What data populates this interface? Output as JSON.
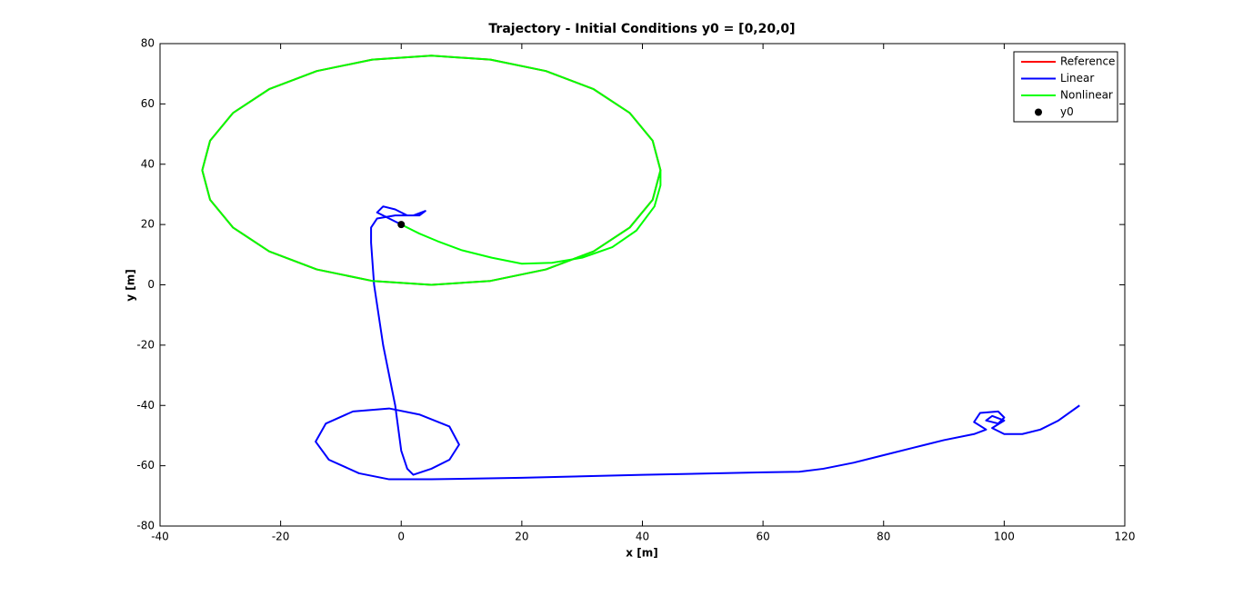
{
  "chart_data": {
    "type": "line",
    "title": "Trajectory - Initial Conditions y0 = [0,20,0]",
    "x_label": "x [m]",
    "y_label": "y [m]",
    "xlim": [
      -40,
      120
    ],
    "xticks": [
      -40,
      -20,
      0,
      20,
      40,
      60,
      80,
      100,
      120
    ],
    "ylim": [
      -80,
      80
    ],
    "yticks": [
      -80,
      -60,
      -40,
      -20,
      0,
      20,
      40,
      60,
      80
    ],
    "legend": "top-right",
    "series": [
      {
        "name": "Reference",
        "color": "#ff0000",
        "style": "line",
        "x": [
          5,
          14.8,
          24,
          31.9,
          37.9,
          41.7,
          43,
          41.7,
          37.9,
          31.9,
          24,
          14.8,
          5,
          -4.8,
          -14,
          -21.9,
          -27.9,
          -31.7,
          -33,
          -31.7,
          -27.9,
          -21.9,
          -14,
          -4.8,
          5
        ],
        "values": [
          0,
          1.3,
          5.1,
          11.1,
          19,
          28.2,
          38,
          47.8,
          57,
          64.9,
          70.9,
          74.7,
          76,
          74.7,
          70.9,
          64.9,
          57,
          47.8,
          38,
          28.2,
          19,
          11.1,
          5.1,
          1.3,
          0
        ]
      },
      {
        "name": "Linear",
        "color": "#0000ff",
        "style": "line",
        "x": [
          0,
          -2,
          -4,
          -3,
          -1,
          1,
          3,
          4,
          2,
          -1,
          -4,
          -5,
          -5,
          -4.5,
          -3,
          -1,
          0,
          1,
          2,
          5,
          8,
          9.6,
          8,
          3,
          -2,
          -8,
          -12.5,
          -14.2,
          -12,
          -7,
          -2,
          5,
          20,
          40,
          60,
          66,
          70,
          75,
          80,
          85,
          90,
          95,
          97,
          95,
          96,
          99,
          100,
          99,
          97,
          98,
          100,
          98,
          100,
          103,
          106,
          109,
          112.5
        ],
        "values": [
          20,
          22,
          24,
          26,
          25,
          23,
          23,
          24.5,
          23,
          23,
          22,
          19,
          14,
          0,
          -20,
          -40,
          -55,
          -61,
          -63,
          -61,
          -58,
          -53,
          -47,
          -43,
          -41,
          -42,
          -46,
          -52,
          -58,
          -62.5,
          -64.5,
          -64.5,
          -64,
          -63,
          -62.2,
          -62,
          -61,
          -59,
          -56.5,
          -54,
          -51.5,
          -49.5,
          -48,
          -45.5,
          -42.5,
          -42,
          -44,
          -46,
          -45,
          -43.5,
          -45,
          -47.5,
          -49.5,
          -49.5,
          -48,
          -45,
          -40
        ]
      },
      {
        "name": "Nonlinear",
        "color": "#00ff00",
        "style": "line",
        "x": [
          0,
          3,
          6,
          10,
          15,
          20,
          25,
          30,
          35,
          39,
          42,
          43,
          43,
          41.7,
          37.9,
          31.9,
          24,
          14.8,
          5,
          -4.8,
          -14,
          -21.9,
          -27.9,
          -31.7,
          -33,
          -31.7,
          -27.9,
          -21.9,
          -14,
          -4.8,
          5,
          14.8,
          24,
          31.9,
          37.9,
          41.7,
          43
        ],
        "values": [
          20,
          17,
          14.5,
          11.5,
          9,
          7,
          7.3,
          9,
          12.5,
          18,
          26,
          33,
          38,
          47.8,
          57,
          64.9,
          70.9,
          74.7,
          76,
          74.7,
          70.9,
          64.9,
          57,
          47.8,
          38,
          28.2,
          19,
          11.1,
          5.1,
          1.3,
          0,
          1.3,
          5.1,
          11.1,
          19,
          28.2,
          38
        ]
      },
      {
        "name": "y0",
        "color": "#000000",
        "style": "marker",
        "x": [
          0
        ],
        "values": [
          20
        ]
      }
    ]
  }
}
